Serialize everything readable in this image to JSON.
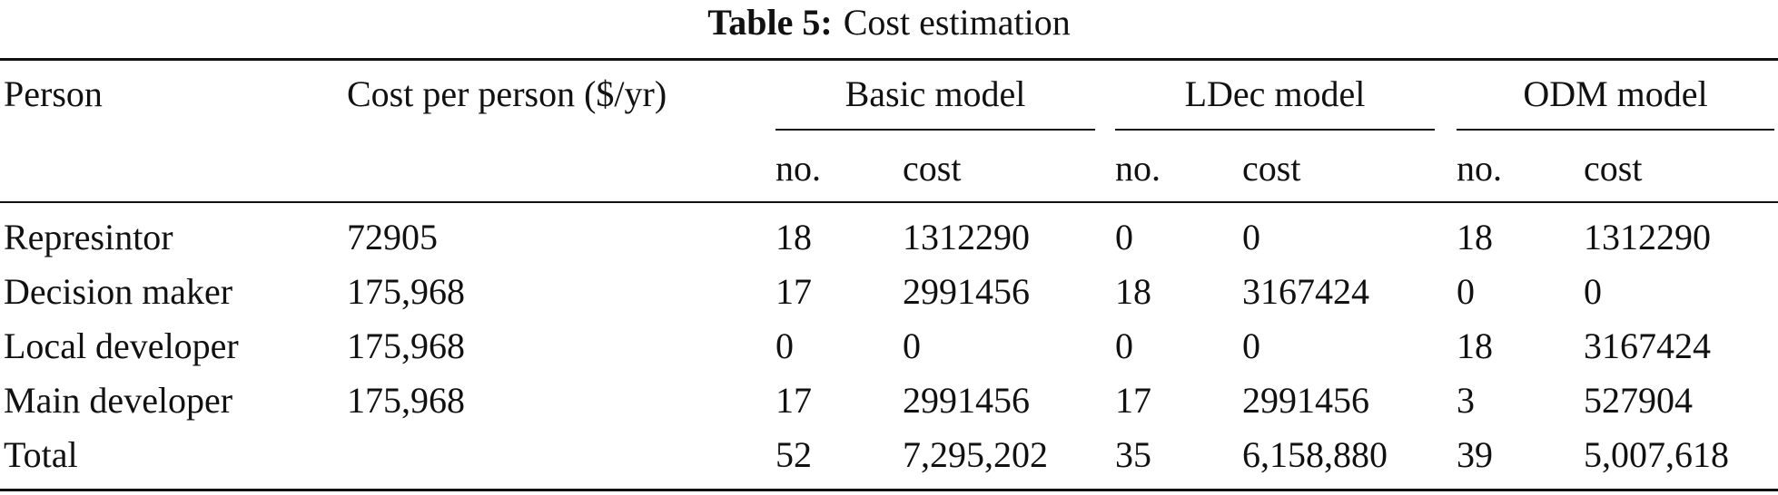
{
  "caption": {
    "label": "Table 5:",
    "text": "Cost estimation"
  },
  "header": {
    "person": "Person",
    "cost_per_person": "Cost per person ($/yr)",
    "groups": [
      {
        "title": "Basic model",
        "no": "no.",
        "cost": "cost"
      },
      {
        "title": "LDec model",
        "no": "no.",
        "cost": "cost"
      },
      {
        "title": "ODM model",
        "no": "no.",
        "cost": "cost"
      }
    ]
  },
  "rows": [
    {
      "person": "Represintor",
      "cost_per_person": "72905",
      "basic_no": "18",
      "basic_cost": "1312290",
      "ldec_no": "0",
      "ldec_cost": "0",
      "odm_no": "18",
      "odm_cost": "1312290"
    },
    {
      "person": "Decision maker",
      "cost_per_person": "175,968",
      "basic_no": "17",
      "basic_cost": "2991456",
      "ldec_no": "18",
      "ldec_cost": "3167424",
      "odm_no": "0",
      "odm_cost": "0"
    },
    {
      "person": "Local developer",
      "cost_per_person": "175,968",
      "basic_no": "0",
      "basic_cost": "0",
      "ldec_no": "0",
      "ldec_cost": "0",
      "odm_no": "18",
      "odm_cost": "3167424"
    },
    {
      "person": "Main developer",
      "cost_per_person": "175,968",
      "basic_no": "17",
      "basic_cost": "2991456",
      "ldec_no": "17",
      "ldec_cost": "2991456",
      "odm_no": "3",
      "odm_cost": "527904"
    },
    {
      "person": "Total",
      "cost_per_person": "",
      "basic_no": "52",
      "basic_cost": "7,295,202",
      "ldec_no": "35",
      "ldec_cost": "6,158,880",
      "odm_no": "39",
      "odm_cost": "5,007,618"
    }
  ]
}
